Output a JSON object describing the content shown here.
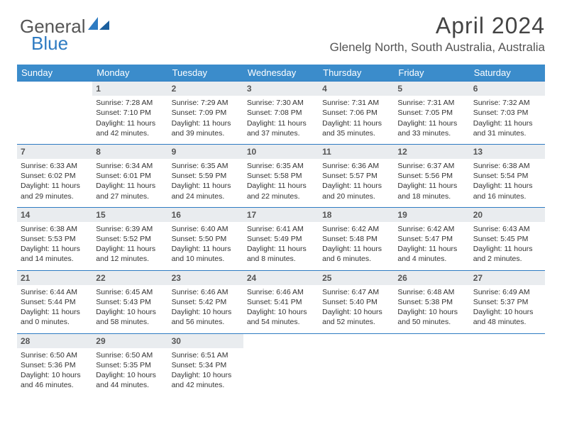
{
  "logo": {
    "general": "General",
    "blue": "Blue"
  },
  "title": "April 2024",
  "location": "Glenelg North, South Australia, Australia",
  "style": {
    "header_bg": "#3b8ccb",
    "header_text": "#ffffff",
    "daynum_bg": "#e9ecef",
    "row_border": "#2e7bc2",
    "body_text": "#333333",
    "page_bg": "#ffffff",
    "title_fontsize": 32,
    "location_fontsize": 17,
    "cell_fontsize": 10.5
  },
  "weekdays": [
    "Sunday",
    "Monday",
    "Tuesday",
    "Wednesday",
    "Thursday",
    "Friday",
    "Saturday"
  ],
  "weeks": [
    [
      {
        "empty": true
      },
      {
        "n": "1",
        "sr": "Sunrise: 7:28 AM",
        "ss": "Sunset: 7:10 PM",
        "dl": "Daylight: 11 hours and 42 minutes."
      },
      {
        "n": "2",
        "sr": "Sunrise: 7:29 AM",
        "ss": "Sunset: 7:09 PM",
        "dl": "Daylight: 11 hours and 39 minutes."
      },
      {
        "n": "3",
        "sr": "Sunrise: 7:30 AM",
        "ss": "Sunset: 7:08 PM",
        "dl": "Daylight: 11 hours and 37 minutes."
      },
      {
        "n": "4",
        "sr": "Sunrise: 7:31 AM",
        "ss": "Sunset: 7:06 PM",
        "dl": "Daylight: 11 hours and 35 minutes."
      },
      {
        "n": "5",
        "sr": "Sunrise: 7:31 AM",
        "ss": "Sunset: 7:05 PM",
        "dl": "Daylight: 11 hours and 33 minutes."
      },
      {
        "n": "6",
        "sr": "Sunrise: 7:32 AM",
        "ss": "Sunset: 7:03 PM",
        "dl": "Daylight: 11 hours and 31 minutes."
      }
    ],
    [
      {
        "n": "7",
        "sr": "Sunrise: 6:33 AM",
        "ss": "Sunset: 6:02 PM",
        "dl": "Daylight: 11 hours and 29 minutes."
      },
      {
        "n": "8",
        "sr": "Sunrise: 6:34 AM",
        "ss": "Sunset: 6:01 PM",
        "dl": "Daylight: 11 hours and 27 minutes."
      },
      {
        "n": "9",
        "sr": "Sunrise: 6:35 AM",
        "ss": "Sunset: 5:59 PM",
        "dl": "Daylight: 11 hours and 24 minutes."
      },
      {
        "n": "10",
        "sr": "Sunrise: 6:35 AM",
        "ss": "Sunset: 5:58 PM",
        "dl": "Daylight: 11 hours and 22 minutes."
      },
      {
        "n": "11",
        "sr": "Sunrise: 6:36 AM",
        "ss": "Sunset: 5:57 PM",
        "dl": "Daylight: 11 hours and 20 minutes."
      },
      {
        "n": "12",
        "sr": "Sunrise: 6:37 AM",
        "ss": "Sunset: 5:56 PM",
        "dl": "Daylight: 11 hours and 18 minutes."
      },
      {
        "n": "13",
        "sr": "Sunrise: 6:38 AM",
        "ss": "Sunset: 5:54 PM",
        "dl": "Daylight: 11 hours and 16 minutes."
      }
    ],
    [
      {
        "n": "14",
        "sr": "Sunrise: 6:38 AM",
        "ss": "Sunset: 5:53 PM",
        "dl": "Daylight: 11 hours and 14 minutes."
      },
      {
        "n": "15",
        "sr": "Sunrise: 6:39 AM",
        "ss": "Sunset: 5:52 PM",
        "dl": "Daylight: 11 hours and 12 minutes."
      },
      {
        "n": "16",
        "sr": "Sunrise: 6:40 AM",
        "ss": "Sunset: 5:50 PM",
        "dl": "Daylight: 11 hours and 10 minutes."
      },
      {
        "n": "17",
        "sr": "Sunrise: 6:41 AM",
        "ss": "Sunset: 5:49 PM",
        "dl": "Daylight: 11 hours and 8 minutes."
      },
      {
        "n": "18",
        "sr": "Sunrise: 6:42 AM",
        "ss": "Sunset: 5:48 PM",
        "dl": "Daylight: 11 hours and 6 minutes."
      },
      {
        "n": "19",
        "sr": "Sunrise: 6:42 AM",
        "ss": "Sunset: 5:47 PM",
        "dl": "Daylight: 11 hours and 4 minutes."
      },
      {
        "n": "20",
        "sr": "Sunrise: 6:43 AM",
        "ss": "Sunset: 5:45 PM",
        "dl": "Daylight: 11 hours and 2 minutes."
      }
    ],
    [
      {
        "n": "21",
        "sr": "Sunrise: 6:44 AM",
        "ss": "Sunset: 5:44 PM",
        "dl": "Daylight: 11 hours and 0 minutes."
      },
      {
        "n": "22",
        "sr": "Sunrise: 6:45 AM",
        "ss": "Sunset: 5:43 PM",
        "dl": "Daylight: 10 hours and 58 minutes."
      },
      {
        "n": "23",
        "sr": "Sunrise: 6:46 AM",
        "ss": "Sunset: 5:42 PM",
        "dl": "Daylight: 10 hours and 56 minutes."
      },
      {
        "n": "24",
        "sr": "Sunrise: 6:46 AM",
        "ss": "Sunset: 5:41 PM",
        "dl": "Daylight: 10 hours and 54 minutes."
      },
      {
        "n": "25",
        "sr": "Sunrise: 6:47 AM",
        "ss": "Sunset: 5:40 PM",
        "dl": "Daylight: 10 hours and 52 minutes."
      },
      {
        "n": "26",
        "sr": "Sunrise: 6:48 AM",
        "ss": "Sunset: 5:38 PM",
        "dl": "Daylight: 10 hours and 50 minutes."
      },
      {
        "n": "27",
        "sr": "Sunrise: 6:49 AM",
        "ss": "Sunset: 5:37 PM",
        "dl": "Daylight: 10 hours and 48 minutes."
      }
    ],
    [
      {
        "n": "28",
        "sr": "Sunrise: 6:50 AM",
        "ss": "Sunset: 5:36 PM",
        "dl": "Daylight: 10 hours and 46 minutes."
      },
      {
        "n": "29",
        "sr": "Sunrise: 6:50 AM",
        "ss": "Sunset: 5:35 PM",
        "dl": "Daylight: 10 hours and 44 minutes."
      },
      {
        "n": "30",
        "sr": "Sunrise: 6:51 AM",
        "ss": "Sunset: 5:34 PM",
        "dl": "Daylight: 10 hours and 42 minutes."
      },
      {
        "empty": true
      },
      {
        "empty": true
      },
      {
        "empty": true
      },
      {
        "empty": true
      }
    ]
  ]
}
